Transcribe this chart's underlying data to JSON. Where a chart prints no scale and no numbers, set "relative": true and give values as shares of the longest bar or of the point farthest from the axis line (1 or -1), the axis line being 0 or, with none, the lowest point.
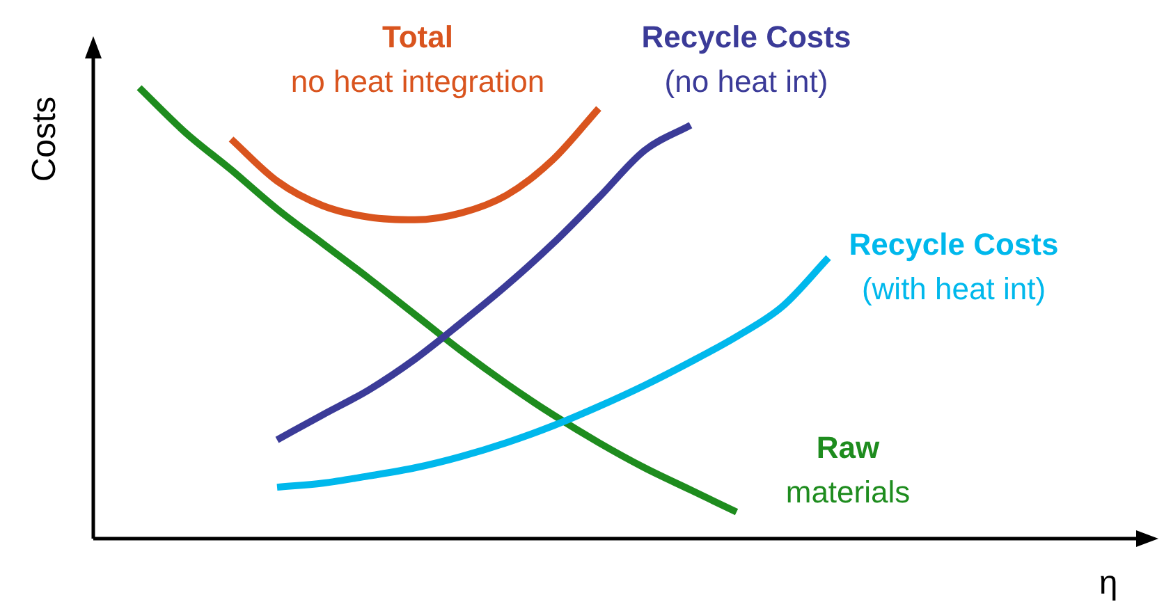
{
  "chart_data": {
    "type": "line",
    "relative": true,
    "xlabel": "η",
    "ylabel": "Costs",
    "legend": false,
    "grid": false,
    "tick_labels": false,
    "marker": "none",
    "line_style": "solid",
    "categories": [
      null,
      null,
      null,
      null,
      null,
      null,
      null,
      null,
      null,
      null,
      null,
      null,
      null,
      null,
      null,
      null,
      null,
      null,
      null,
      null,
      null,
      null,
      null,
      null
    ],
    "series": [
      {
        "name": "Total\nno heat integration",
        "color": "#d9541e",
        "values": [
          null,
          null,
          null,
          0.886,
          0.793,
          0.738,
          0.713,
          0.707,
          0.722,
          0.762,
          0.84,
          0.954,
          null,
          null,
          null,
          null,
          null,
          null,
          null,
          null,
          null,
          null,
          null,
          null
        ]
      },
      {
        "name": "Recycle Costs\n(no heat int)",
        "color": "#3b3b98",
        "values": [
          null,
          null,
          null,
          null,
          0.219,
          0.275,
          0.33,
          0.398,
          0.478,
          0.562,
          0.654,
          0.756,
          0.861,
          0.917,
          null,
          null,
          null,
          null,
          null,
          null,
          null,
          null,
          null,
          null
        ]
      },
      {
        "name": "Recycle Costs\n(with heat int)",
        "color": "#00b8ec",
        "values": [
          null,
          null,
          null,
          null,
          0.114,
          0.123,
          0.139,
          0.157,
          0.182,
          0.213,
          0.25,
          0.293,
          0.34,
          0.392,
          0.448,
          0.515,
          0.623,
          null,
          null,
          null,
          null,
          null,
          null,
          null
        ]
      },
      {
        "name": "Raw\nmaterials",
        "color": "#1e8c1e",
        "values": [
          null,
          1.0,
          0.901,
          0.818,
          0.731,
          0.654,
          0.577,
          0.497,
          0.417,
          0.343,
          0.275,
          0.213,
          0.157,
          0.108,
          0.059,
          null,
          null,
          null,
          null,
          null,
          null,
          null,
          null,
          null
        ]
      }
    ]
  }
}
